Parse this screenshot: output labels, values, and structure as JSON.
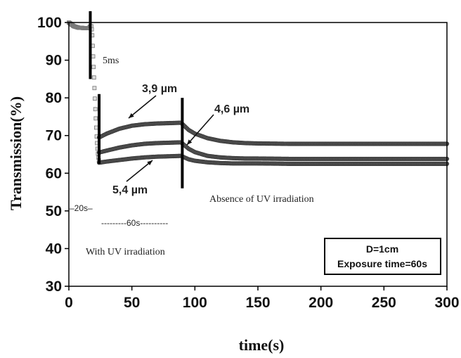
{
  "chart_data": {
    "type": "scatter",
    "title": "",
    "xlabel": "time(s)",
    "ylabel": "Transmission(%)",
    "xlim": [
      0,
      300
    ],
    "ylim": [
      30,
      100
    ],
    "x_ticks": [
      "0",
      "50",
      "100",
      "150",
      "200",
      "250",
      "300"
    ],
    "y_ticks": [
      "30",
      "40",
      "50",
      "60",
      "70",
      "80",
      "90",
      "100"
    ],
    "grid": false,
    "legend": "none",
    "colors": {
      "series": "#555555",
      "series_light": "#bbbbbb",
      "axis": "#000000",
      "marker_lines": "#000000"
    },
    "series": [
      {
        "name": "3,9 µm",
        "x": [
          24,
          30,
          40,
          50,
          60,
          70,
          80,
          89,
          95,
          100,
          110,
          120,
          130,
          140,
          150,
          175,
          200,
          250,
          300
        ],
        "values": [
          69.5,
          70.5,
          71.8,
          72.6,
          73.0,
          73.2,
          73.3,
          73.4,
          71.5,
          70.5,
          69.3,
          68.6,
          68.2,
          68.0,
          67.9,
          67.8,
          67.8,
          67.8,
          67.8
        ]
      },
      {
        "name": "4,6 µm",
        "x": [
          24,
          30,
          40,
          50,
          60,
          70,
          80,
          89,
          95,
          100,
          110,
          120,
          130,
          140,
          150,
          175,
          200,
          250,
          300
        ],
        "values": [
          65.5,
          66.0,
          66.8,
          67.4,
          67.8,
          68.0,
          68.1,
          68.2,
          66.5,
          65.6,
          64.6,
          64.2,
          64.0,
          63.9,
          63.9,
          63.8,
          63.8,
          63.8,
          63.8
        ]
      },
      {
        "name": "5,4 µm",
        "x": [
          24,
          30,
          40,
          50,
          60,
          70,
          80,
          89,
          95,
          100,
          110,
          120,
          130,
          140,
          150,
          175,
          200,
          250,
          300
        ],
        "values": [
          62.8,
          63.1,
          63.5,
          63.9,
          64.2,
          64.4,
          64.5,
          64.6,
          63.7,
          63.3,
          62.9,
          62.7,
          62.6,
          62.6,
          62.6,
          62.5,
          62.5,
          62.5,
          62.5
        ]
      }
    ],
    "initial_segment": {
      "x": [
        0,
        2,
        4,
        6,
        8,
        10,
        12,
        14,
        16,
        17,
        18,
        18.5,
        19,
        19.5,
        20,
        20.5,
        21,
        21.5,
        22,
        22.5,
        23,
        23.5,
        24
      ],
      "values": [
        100,
        99.5,
        99.0,
        98.8,
        98.6,
        98.6,
        98.5,
        98.5,
        98.5,
        99.0,
        99.0,
        97.0,
        93.0,
        89.0,
        85.0,
        81.0,
        77.0,
        73.5,
        70.0,
        67.5,
        65.5,
        64.0,
        63.0
      ]
    },
    "vertical_markers": [
      {
        "x": 17,
        "y_from": 85,
        "y_to": 103
      },
      {
        "x": 24,
        "y_from": 62.5,
        "y_to": 81
      },
      {
        "x": 90,
        "y_from": 56,
        "y_to": 80
      }
    ],
    "annotations": {
      "label_5ms": "5ms",
      "label_39": "3,9 µm",
      "label_46": "4,6 µm",
      "label_54": "5,4 µm",
      "label_20s": "–20s–",
      "label_60s": "---------60s----------",
      "label_absence": "Absence of UV irradiation",
      "label_with": "With UV irradiation",
      "box_line1": "D=1cm",
      "box_line2": "Exposure time=60s"
    }
  }
}
